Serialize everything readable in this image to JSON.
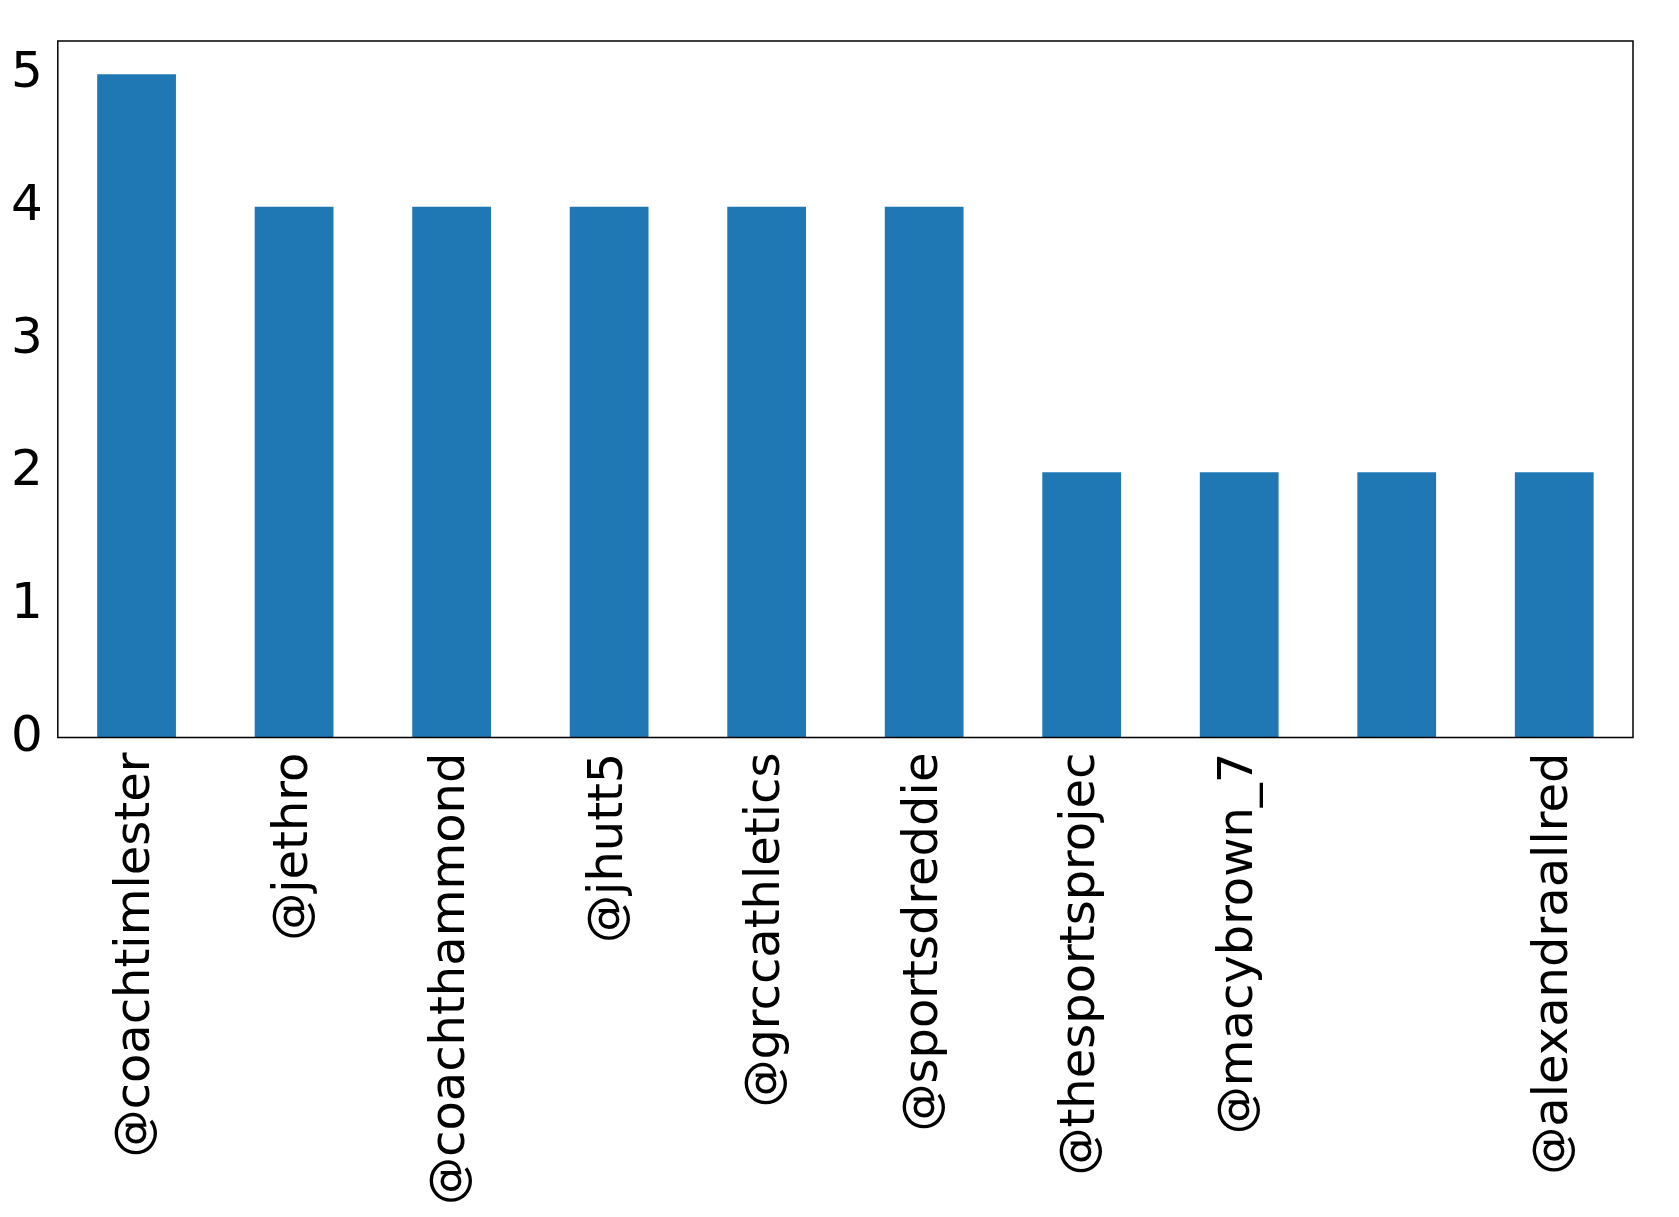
{
  "chart_data": {
    "type": "bar",
    "categories": [
      "@coachtimlester",
      "@jethro",
      "@coachthammond",
      "@jhutt5",
      "@grccathletics",
      "@sportsdreddie",
      "@thesportsprojec",
      "@macybrown_7",
      null,
      "@alexandraallred"
    ],
    "values": [
      5,
      4,
      4,
      4,
      4,
      4,
      2,
      2,
      2,
      2
    ],
    "color": "#1f77b4",
    "ylim": [
      0,
      5.25
    ],
    "yticks": [
      0,
      1,
      2,
      3,
      4,
      5
    ],
    "grid": false,
    "legend": false
  }
}
